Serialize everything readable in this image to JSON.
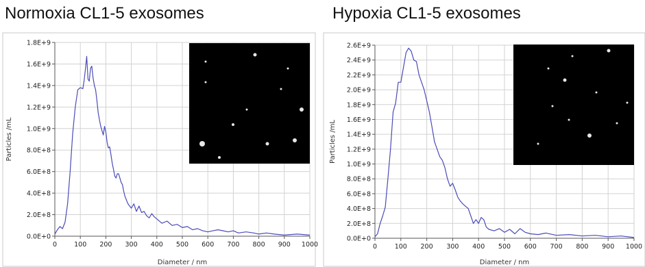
{
  "panels": [
    {
      "title": "Normoxia CL1-5 exosomes"
    },
    {
      "title": "Hypoxia CL1-5 exosomes"
    }
  ],
  "colors": {
    "line": "#4a4ab8",
    "grid": "#d2d2d2",
    "axis": "#555555",
    "inset": "#000000"
  },
  "chart_data": [
    {
      "type": "line",
      "title": "Normoxia CL1-5 exosomes",
      "xlabel": "Diameter / nm",
      "ylabel": "Particles /mL",
      "xlim": [
        0,
        1000
      ],
      "ylim": [
        0,
        1800000000
      ],
      "grid": true,
      "xticks": [
        "0",
        "100",
        "200",
        "300",
        "400",
        "500",
        "600",
        "700",
        "800",
        "900",
        "1000"
      ],
      "yticks": [
        "0.0E+0",
        "2.0E+8",
        "4.0E+8",
        "6.0E+8",
        "8.0E+8",
        "1.0E+9",
        "1.2E+9",
        "1.4E+9",
        "1.6E+9",
        "1.8E+9"
      ],
      "inset": "nanoparticle tracking image (top-right)",
      "series": [
        {
          "x": [
            0,
            10,
            20,
            30,
            40,
            50,
            60,
            70,
            80,
            90,
            100,
            110,
            115,
            120,
            125,
            130,
            135,
            140,
            145,
            150,
            155,
            160,
            165,
            170,
            175,
            180,
            185,
            190,
            195,
            200,
            205,
            210,
            215,
            220,
            225,
            230,
            235,
            240,
            245,
            250,
            255,
            260,
            265,
            270,
            275,
            280,
            285,
            290,
            300,
            310,
            320,
            330,
            340,
            350,
            360,
            370,
            380,
            390,
            400,
            420,
            440,
            460,
            480,
            500,
            520,
            540,
            560,
            580,
            600,
            620,
            640,
            660,
            680,
            700,
            720,
            750,
            780,
            800,
            830,
            860,
            900,
            950,
            1000
          ],
          "y": [
            20000000,
            60000000,
            90000000,
            70000000,
            130000000,
            300000000,
            600000000,
            950000000,
            1200000000,
            1360000000,
            1380000000,
            1370000000,
            1450000000,
            1550000000,
            1670000000,
            1460000000,
            1440000000,
            1560000000,
            1580000000,
            1470000000,
            1400000000,
            1360000000,
            1260000000,
            1150000000,
            1080000000,
            1020000000,
            980000000,
            940000000,
            1020000000,
            970000000,
            870000000,
            820000000,
            830000000,
            760000000,
            680000000,
            620000000,
            560000000,
            540000000,
            580000000,
            580000000,
            540000000,
            500000000,
            480000000,
            420000000,
            370000000,
            340000000,
            310000000,
            290000000,
            260000000,
            300000000,
            230000000,
            280000000,
            220000000,
            230000000,
            190000000,
            170000000,
            210000000,
            180000000,
            160000000,
            120000000,
            140000000,
            100000000,
            110000000,
            80000000,
            90000000,
            60000000,
            70000000,
            50000000,
            40000000,
            50000000,
            60000000,
            50000000,
            40000000,
            50000000,
            30000000,
            40000000,
            30000000,
            20000000,
            30000000,
            20000000,
            10000000,
            20000000,
            10000000
          ]
        }
      ]
    },
    {
      "type": "line",
      "title": "Hypoxia CL1-5 exosomes",
      "xlabel": "Diameter / nm",
      "ylabel": "Particles /mL",
      "xlim": [
        0,
        1000
      ],
      "ylim": [
        0,
        2600000000
      ],
      "grid": true,
      "xticks": [
        "0",
        "100",
        "200",
        "300",
        "400",
        "500",
        "600",
        "700",
        "800",
        "900",
        "1000"
      ],
      "yticks": [
        "0.0E+0",
        "2.0E+8",
        "4.0E+8",
        "6.0E+8",
        "8.0E+8",
        "1.0E+9",
        "1.2E+9",
        "1.4E+9",
        "1.6E+9",
        "1.8E+9",
        "2.0E+9",
        "2.2E+9",
        "2.4E+9",
        "2.6E+9"
      ],
      "inset": "nanoparticle tracking image (top-right)",
      "series": [
        {
          "x": [
            0,
            10,
            20,
            30,
            40,
            50,
            60,
            70,
            80,
            90,
            100,
            110,
            120,
            130,
            140,
            150,
            160,
            170,
            180,
            190,
            200,
            210,
            220,
            230,
            240,
            250,
            260,
            270,
            280,
            290,
            300,
            310,
            320,
            330,
            340,
            350,
            360,
            370,
            380,
            390,
            400,
            410,
            420,
            430,
            440,
            460,
            480,
            500,
            520,
            540,
            560,
            580,
            600,
            630,
            660,
            700,
            750,
            800,
            850,
            900,
            950,
            1000
          ],
          "y": [
            20000000,
            60000000,
            200000000,
            300000000,
            420000000,
            800000000,
            1200000000,
            1700000000,
            1820000000,
            2100000000,
            2100000000,
            2300000000,
            2500000000,
            2560000000,
            2520000000,
            2400000000,
            2380000000,
            2200000000,
            2100000000,
            2000000000,
            1850000000,
            1700000000,
            1500000000,
            1300000000,
            1200000000,
            1100000000,
            1050000000,
            950000000,
            800000000,
            700000000,
            740000000,
            650000000,
            550000000,
            500000000,
            460000000,
            430000000,
            400000000,
            300000000,
            200000000,
            250000000,
            200000000,
            280000000,
            250000000,
            150000000,
            120000000,
            100000000,
            130000000,
            80000000,
            120000000,
            60000000,
            130000000,
            80000000,
            60000000,
            50000000,
            70000000,
            40000000,
            50000000,
            30000000,
            40000000,
            20000000,
            30000000,
            10000000
          ]
        }
      ]
    }
  ]
}
